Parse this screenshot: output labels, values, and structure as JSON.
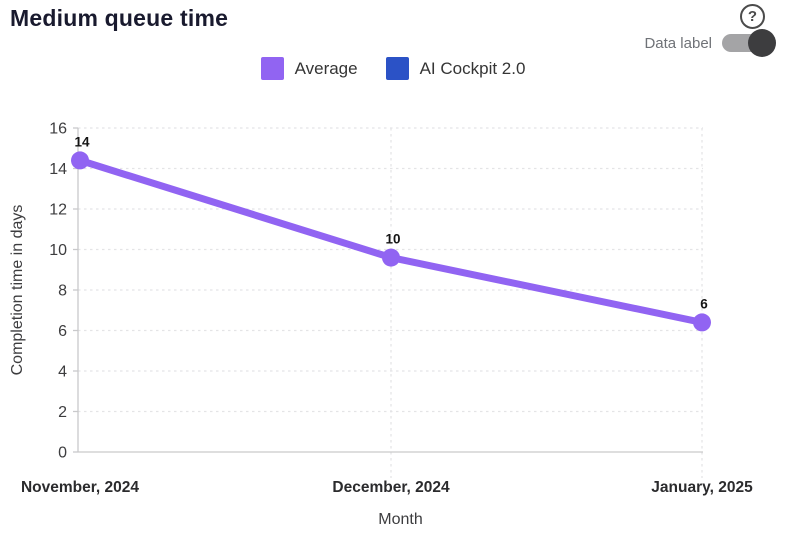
{
  "header": {
    "title": "Medium queue time",
    "help_glyph": "?",
    "data_label_toggle": {
      "label": "Data label",
      "state": "on"
    }
  },
  "legend": {
    "items": [
      {
        "label": "Average",
        "color": "#9164f2"
      },
      {
        "label": "AI Cockpit 2.0",
        "color": "#2b52c6"
      }
    ]
  },
  "chart_data": {
    "type": "line",
    "title": "Medium queue time",
    "xlabel": "Month",
    "ylabel": "Completion time in days",
    "categories": [
      "November, 2024",
      "December, 2024",
      "January, 2025"
    ],
    "series": [
      {
        "name": "Average",
        "color": "#9164f2",
        "values": [
          14.4,
          9.6,
          6.4
        ],
        "data_labels": [
          "14",
          "10",
          "6"
        ]
      },
      {
        "name": "AI Cockpit 2.0",
        "color": "#2b52c6",
        "values": [],
        "data_labels": []
      }
    ],
    "ylim": [
      0,
      16
    ],
    "ytick_step": 2,
    "grid": true,
    "grid_style": "dashed",
    "legend_position": "top",
    "data_labels_visible": true
  },
  "colors": {
    "grid": "#e4e4e6",
    "axis": "#c9c9cb",
    "tick_text": "#3d3d3f",
    "x_label_text": "#2b2b2d",
    "data_label_text": "#141414",
    "axis_title_text": "#3d3d3f"
  }
}
